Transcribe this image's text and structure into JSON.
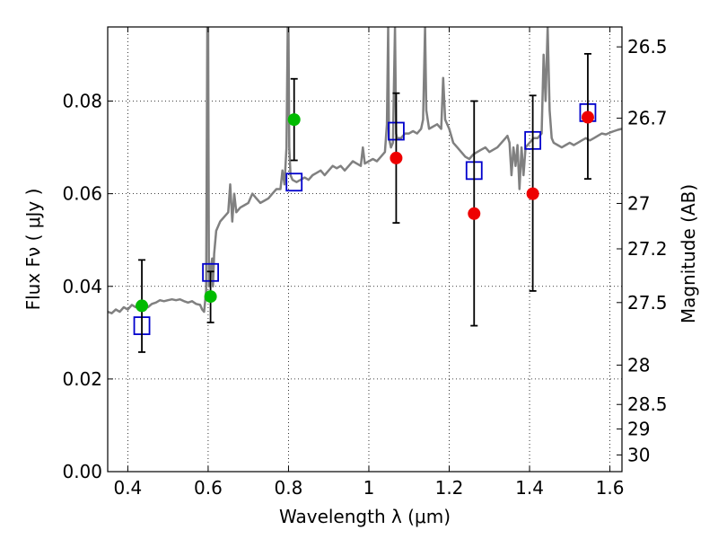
{
  "chart_data": {
    "type": "scatter",
    "title": "",
    "xlabel": "Wavelength  λ (μm)",
    "ylabel": "Flux  Fν  ( μJy )",
    "y2label": "Magnitude (AB)",
    "xlim": [
      0.35,
      1.63
    ],
    "ylim": [
      0.0,
      0.096
    ],
    "grid": true,
    "legend": "none",
    "x_ticks": [
      0.4,
      0.6,
      0.8,
      1.0,
      1.2,
      1.4,
      1.6
    ],
    "x_tick_labels": [
      "0.4",
      "0.6",
      "0.8",
      "1",
      "1.2",
      "1.4",
      "1.6"
    ],
    "y_ticks": [
      0.0,
      0.02,
      0.04,
      0.06,
      0.08
    ],
    "y_tick_labels": [
      "0.00",
      "0.02",
      "0.04",
      "0.06",
      "0.08"
    ],
    "y2_ticks": [
      {
        "label": "26.5",
        "flux": 0.0917
      },
      {
        "label": "26.7",
        "flux": 0.0763
      },
      {
        "label": "27",
        "flux": 0.0579
      },
      {
        "label": "27.2",
        "flux": 0.0481
      },
      {
        "label": "27.5",
        "flux": 0.0365
      },
      {
        "label": "28",
        "flux": 0.023
      },
      {
        "label": "28.5",
        "flux": 0.0145
      },
      {
        "label": "29",
        "flux": 0.0092
      },
      {
        "label": "30",
        "flux": 0.0036
      }
    ],
    "colors": {
      "model": "#808080",
      "green": "#00bb00",
      "red": "#ee0000",
      "square": "#0000cc",
      "errorbar": "#000000"
    },
    "series": [
      {
        "type": "line",
        "color": "model",
        "points": [
          [
            0.35,
            0.0345
          ],
          [
            0.36,
            0.0342
          ],
          [
            0.37,
            0.035
          ],
          [
            0.38,
            0.0345
          ],
          [
            0.39,
            0.0355
          ],
          [
            0.4,
            0.035
          ],
          [
            0.41,
            0.036
          ],
          [
            0.42,
            0.0355
          ],
          [
            0.43,
            0.0358
          ],
          [
            0.44,
            0.0352
          ],
          [
            0.45,
            0.0355
          ],
          [
            0.46,
            0.0362
          ],
          [
            0.47,
            0.0365
          ],
          [
            0.48,
            0.037
          ],
          [
            0.49,
            0.0368
          ],
          [
            0.5,
            0.037
          ],
          [
            0.51,
            0.0372
          ],
          [
            0.52,
            0.037
          ],
          [
            0.53,
            0.0372
          ],
          [
            0.54,
            0.0368
          ],
          [
            0.55,
            0.0365
          ],
          [
            0.56,
            0.0368
          ],
          [
            0.57,
            0.0362
          ],
          [
            0.58,
            0.036
          ],
          [
            0.585,
            0.035
          ],
          [
            0.59,
            0.0345
          ],
          [
            0.595,
            0.039
          ],
          [
            0.598,
            0.096
          ],
          [
            0.6,
            0.096
          ],
          [
            0.602,
            0.04
          ],
          [
            0.605,
            0.043
          ],
          [
            0.61,
            0.046
          ],
          [
            0.612,
            0.04
          ],
          [
            0.615,
            0.047
          ],
          [
            0.62,
            0.052
          ],
          [
            0.63,
            0.054
          ],
          [
            0.64,
            0.055
          ],
          [
            0.65,
            0.056
          ],
          [
            0.655,
            0.062
          ],
          [
            0.66,
            0.054
          ],
          [
            0.665,
            0.06
          ],
          [
            0.67,
            0.056
          ],
          [
            0.68,
            0.057
          ],
          [
            0.69,
            0.0575
          ],
          [
            0.7,
            0.058
          ],
          [
            0.71,
            0.06
          ],
          [
            0.72,
            0.059
          ],
          [
            0.73,
            0.058
          ],
          [
            0.74,
            0.0585
          ],
          [
            0.75,
            0.059
          ],
          [
            0.76,
            0.06
          ],
          [
            0.77,
            0.061
          ],
          [
            0.78,
            0.061
          ],
          [
            0.785,
            0.065
          ],
          [
            0.79,
            0.062
          ],
          [
            0.795,
            0.07
          ],
          [
            0.798,
            0.096
          ],
          [
            0.8,
            0.096
          ],
          [
            0.802,
            0.07
          ],
          [
            0.805,
            0.064
          ],
          [
            0.81,
            0.063
          ],
          [
            0.82,
            0.0625
          ],
          [
            0.83,
            0.063
          ],
          [
            0.84,
            0.0635
          ],
          [
            0.85,
            0.063
          ],
          [
            0.86,
            0.064
          ],
          [
            0.87,
            0.0645
          ],
          [
            0.88,
            0.065
          ],
          [
            0.89,
            0.064
          ],
          [
            0.9,
            0.065
          ],
          [
            0.91,
            0.066
          ],
          [
            0.92,
            0.0655
          ],
          [
            0.93,
            0.066
          ],
          [
            0.94,
            0.065
          ],
          [
            0.95,
            0.066
          ],
          [
            0.96,
            0.067
          ],
          [
            0.97,
            0.0665
          ],
          [
            0.98,
            0.066
          ],
          [
            0.985,
            0.07
          ],
          [
            0.99,
            0.0665
          ],
          [
            1.0,
            0.067
          ],
          [
            1.01,
            0.0675
          ],
          [
            1.02,
            0.067
          ],
          [
            1.03,
            0.068
          ],
          [
            1.04,
            0.069
          ],
          [
            1.045,
            0.075
          ],
          [
            1.048,
            0.096
          ],
          [
            1.05,
            0.072
          ],
          [
            1.055,
            0.07
          ],
          [
            1.06,
            0.071
          ],
          [
            1.065,
            0.096
          ],
          [
            1.068,
            0.073
          ],
          [
            1.07,
            0.072
          ],
          [
            1.08,
            0.072
          ],
          [
            1.09,
            0.073
          ],
          [
            1.1,
            0.073
          ],
          [
            1.11,
            0.0735
          ],
          [
            1.12,
            0.073
          ],
          [
            1.13,
            0.074
          ],
          [
            1.135,
            0.076
          ],
          [
            1.14,
            0.096
          ],
          [
            1.143,
            0.078
          ],
          [
            1.15,
            0.074
          ],
          [
            1.16,
            0.0745
          ],
          [
            1.17,
            0.075
          ],
          [
            1.18,
            0.074
          ],
          [
            1.185,
            0.085
          ],
          [
            1.19,
            0.076
          ],
          [
            1.2,
            0.074
          ],
          [
            1.21,
            0.071
          ],
          [
            1.22,
            0.07
          ],
          [
            1.23,
            0.069
          ],
          [
            1.24,
            0.068
          ],
          [
            1.25,
            0.0675
          ],
          [
            1.26,
            0.0685
          ],
          [
            1.27,
            0.069
          ],
          [
            1.28,
            0.0695
          ],
          [
            1.29,
            0.07
          ],
          [
            1.3,
            0.069
          ],
          [
            1.31,
            0.0695
          ],
          [
            1.32,
            0.07
          ],
          [
            1.33,
            0.071
          ],
          [
            1.34,
            0.072
          ],
          [
            1.345,
            0.0725
          ],
          [
            1.35,
            0.071
          ],
          [
            1.355,
            0.064
          ],
          [
            1.36,
            0.07
          ],
          [
            1.365,
            0.066
          ],
          [
            1.37,
            0.0705
          ],
          [
            1.375,
            0.061
          ],
          [
            1.38,
            0.07
          ],
          [
            1.385,
            0.064
          ],
          [
            1.39,
            0.07
          ],
          [
            1.4,
            0.071
          ],
          [
            1.41,
            0.072
          ],
          [
            1.42,
            0.072
          ],
          [
            1.43,
            0.073
          ],
          [
            1.435,
            0.09
          ],
          [
            1.44,
            0.08
          ],
          [
            1.445,
            0.096
          ],
          [
            1.45,
            0.078
          ],
          [
            1.455,
            0.072
          ],
          [
            1.46,
            0.071
          ],
          [
            1.47,
            0.0705
          ],
          [
            1.48,
            0.07
          ],
          [
            1.49,
            0.0705
          ],
          [
            1.5,
            0.071
          ],
          [
            1.51,
            0.0705
          ],
          [
            1.52,
            0.071
          ],
          [
            1.53,
            0.0715
          ],
          [
            1.54,
            0.072
          ],
          [
            1.55,
            0.0715
          ],
          [
            1.56,
            0.072
          ],
          [
            1.57,
            0.0725
          ],
          [
            1.58,
            0.073
          ],
          [
            1.59,
            0.0728
          ],
          [
            1.6,
            0.0732
          ],
          [
            1.61,
            0.0735
          ],
          [
            1.62,
            0.0738
          ],
          [
            1.63,
            0.074
          ]
        ]
      },
      {
        "type": "scatter",
        "marker": "open-square",
        "color": "square",
        "points": [
          [
            0.435,
            0.0315
          ],
          [
            0.606,
            0.043
          ],
          [
            0.814,
            0.0625
          ],
          [
            1.068,
            0.0735
          ],
          [
            1.262,
            0.065
          ],
          [
            1.408,
            0.0715
          ],
          [
            1.545,
            0.0775
          ]
        ]
      },
      {
        "type": "scatter",
        "marker": "filled-circle",
        "color": "green",
        "points": [
          [
            0.435,
            0.0358,
            0.0258,
            0.0457
          ],
          [
            0.606,
            0.0378,
            0.0322,
            0.0432
          ],
          [
            0.814,
            0.076,
            0.0672,
            0.0848
          ]
        ]
      },
      {
        "type": "scatter",
        "marker": "filled-circle",
        "color": "red",
        "points": [
          [
            1.068,
            0.0677,
            0.0537,
            0.0817
          ],
          [
            1.262,
            0.0557,
            0.0315,
            0.08
          ],
          [
            1.408,
            0.06,
            0.039,
            0.0812
          ],
          [
            1.545,
            0.0765,
            0.0632,
            0.0902
          ]
        ]
      }
    ]
  }
}
